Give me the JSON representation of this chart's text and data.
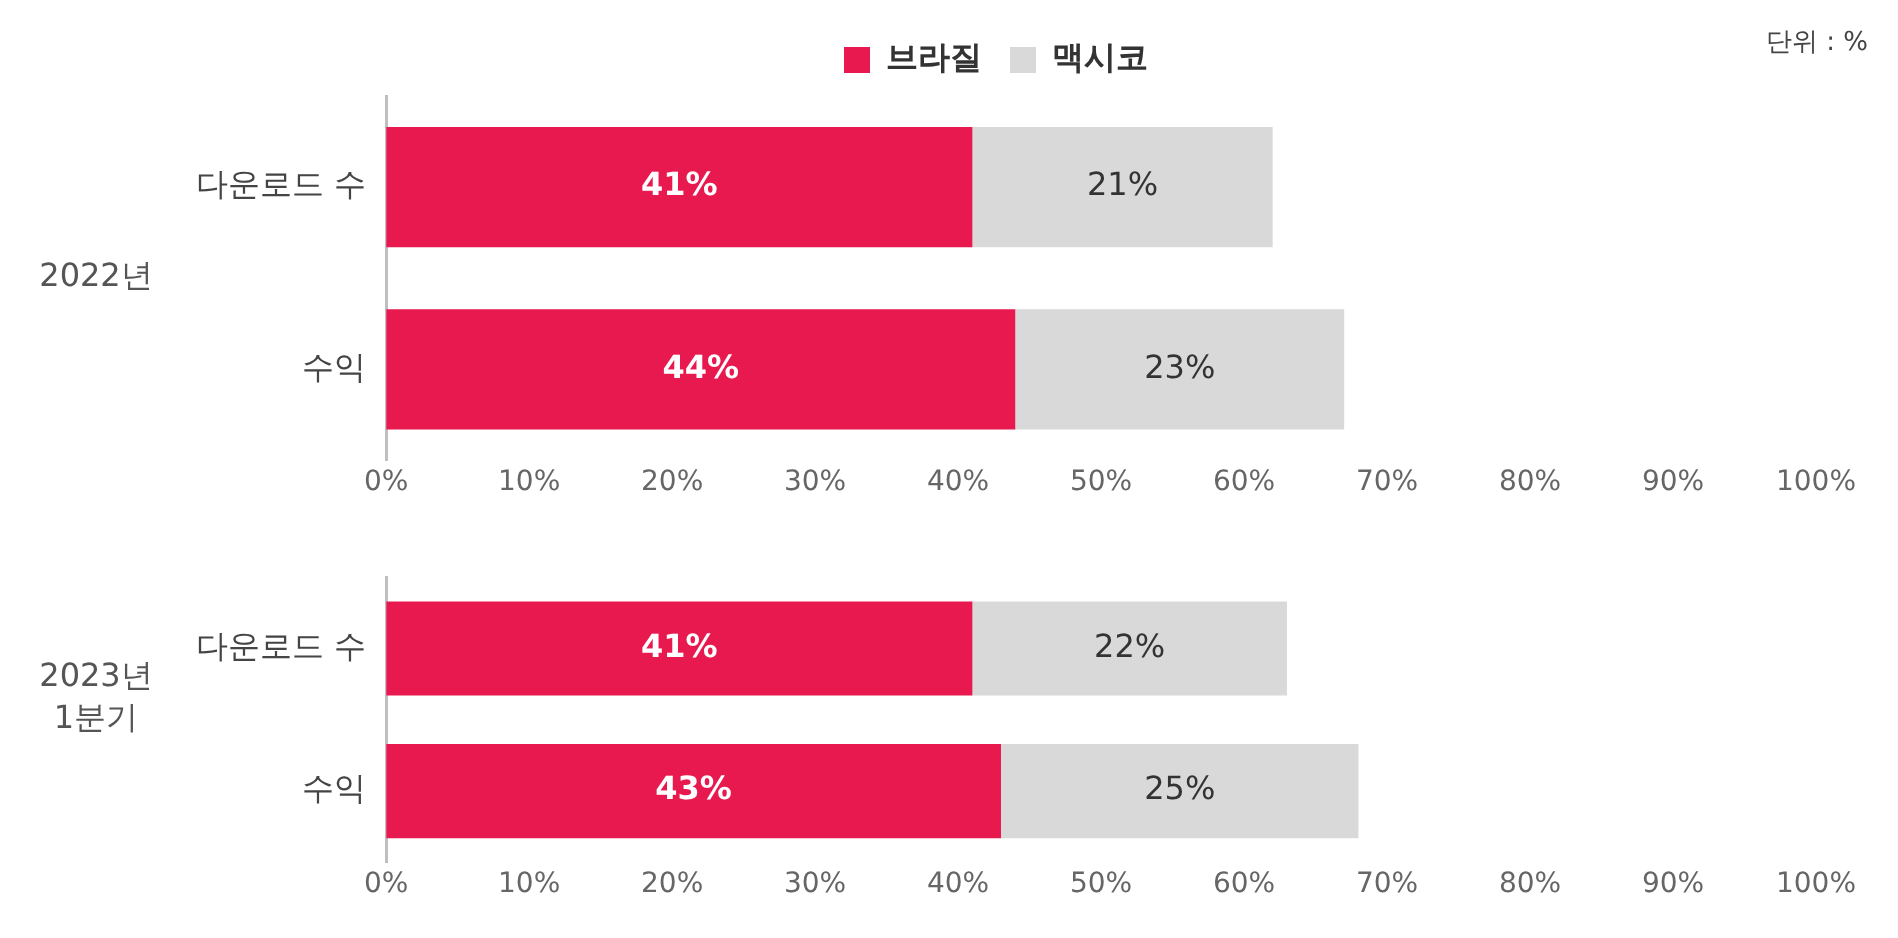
{
  "chart_data": [
    {
      "type": "bar",
      "orientation": "horizontal",
      "stacked": true,
      "ylabel": "2022년",
      "legend": "top",
      "annotations": [
        "단위 : %"
      ],
      "categories": [
        "다운로드 수",
        "수익"
      ],
      "series": [
        {
          "name": "브라질",
          "color": "#e8194f",
          "values": [
            41,
            44
          ],
          "value_labels": [
            "41%",
            "44%"
          ]
        },
        {
          "name": "맥시코",
          "color": "#d9d9d9",
          "values": [
            21,
            23
          ],
          "value_labels": [
            "21%",
            "23%"
          ]
        }
      ],
      "xlim": [
        0,
        100
      ],
      "xticks": [
        {
          "value": 0,
          "label": "0%"
        },
        {
          "value": 10,
          "label": "10%"
        },
        {
          "value": 20,
          "label": "20%"
        },
        {
          "value": 30,
          "label": "30%"
        },
        {
          "value": 40,
          "label": "40%"
        },
        {
          "value": 50,
          "label": "50%"
        },
        {
          "value": 60,
          "label": "60%"
        },
        {
          "value": 70,
          "label": "70%"
        },
        {
          "value": 80,
          "label": "80%"
        },
        {
          "value": 90,
          "label": "90%"
        },
        {
          "value": 100,
          "label": "100%"
        }
      ],
      "grid": false
    },
    {
      "type": "bar",
      "orientation": "horizontal",
      "stacked": true,
      "ylabel": "2023년\n1분기",
      "categories": [
        "다운로드 수",
        "수익"
      ],
      "series": [
        {
          "color": "#e8194f",
          "values": [
            41,
            43
          ],
          "value_labels": [
            "41%",
            "43%"
          ]
        },
        {
          "color": "#d9d9d9",
          "values": [
            22,
            25
          ],
          "value_labels": [
            "22%",
            "25%"
          ]
        }
      ],
      "xlim": [
        0,
        100
      ],
      "xticks": [
        {
          "value": 0,
          "label": "0%"
        },
        {
          "value": 10,
          "label": "10%"
        },
        {
          "value": 20,
          "label": "20%"
        },
        {
          "value": 30,
          "label": "30%"
        },
        {
          "value": 40,
          "label": "40%"
        },
        {
          "value": 50,
          "label": "50%"
        },
        {
          "value": 60,
          "label": "60%"
        },
        {
          "value": 70,
          "label": "70%"
        },
        {
          "value": 80,
          "label": "80%"
        },
        {
          "value": 90,
          "label": "90%"
        },
        {
          "value": 100,
          "label": "100%"
        }
      ],
      "grid": false
    }
  ]
}
